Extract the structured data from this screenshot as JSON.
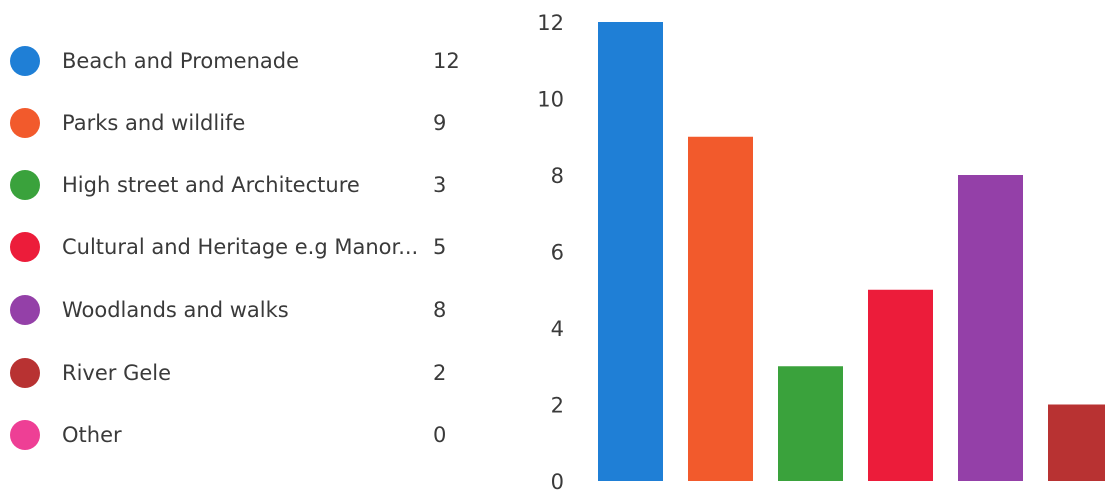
{
  "legend": {
    "items": [
      {
        "label": "Beach and Promenade",
        "value": "12",
        "color": "#1f7fd6"
      },
      {
        "label": "Parks and wildlife",
        "value": "9",
        "color": "#f25a2c"
      },
      {
        "label": "High street and Architecture",
        "value": "3",
        "color": "#3aa23c"
      },
      {
        "label": "Cultural and Heritage e.g Manor...",
        "value": "5",
        "color": "#ec1c3a"
      },
      {
        "label": "Woodlands and walks",
        "value": "8",
        "color": "#9440a8"
      },
      {
        "label": "River Gele",
        "value": "2",
        "color": "#b83232"
      },
      {
        "label": "Other",
        "value": "0",
        "color": "#ee3f95"
      }
    ]
  },
  "chart_data": {
    "type": "bar",
    "categories": [
      "Beach and Promenade",
      "Parks and wildlife",
      "High street and Architecture",
      "Cultural and Heritage e.g Manor...",
      "Woodlands and walks",
      "River Gele",
      "Other"
    ],
    "values": [
      12,
      9,
      3,
      5,
      8,
      2,
      0
    ],
    "colors": [
      "#1f7fd6",
      "#f25a2c",
      "#3aa23c",
      "#ec1c3a",
      "#9440a8",
      "#b83232",
      "#ee3f95"
    ],
    "y_ticks": [
      "0",
      "2",
      "4",
      "6",
      "8",
      "10",
      "12"
    ],
    "ylim": [
      0,
      12
    ],
    "grid": false,
    "legend_position": "left"
  }
}
